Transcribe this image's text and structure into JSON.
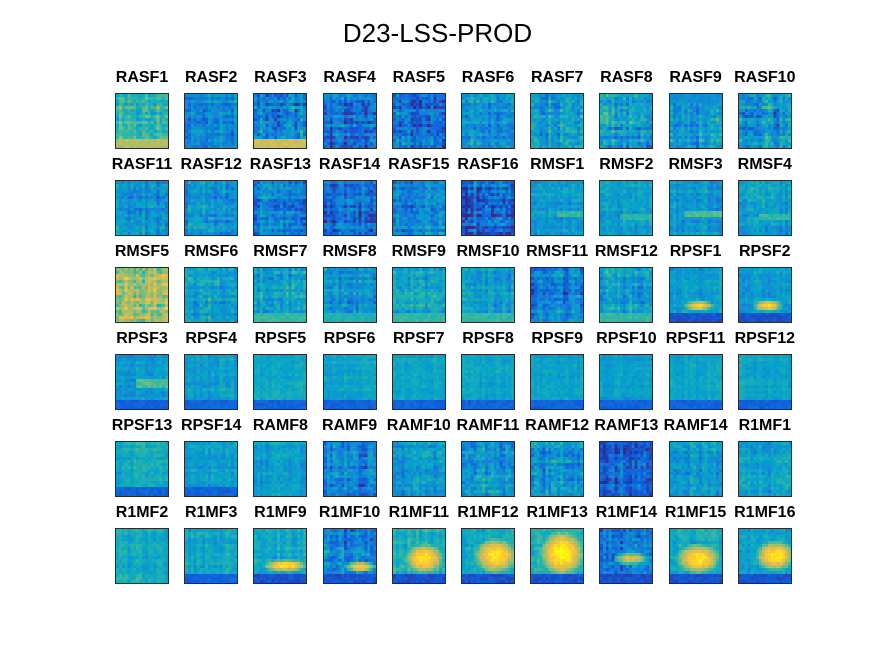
{
  "chart_data": {
    "type": "heatmap",
    "title": "D23-LSS-PROD",
    "rows": 6,
    "cols": 10,
    "colormap": "parula",
    "colormap_stops": [
      "#352a87",
      "#0f5cdd",
      "#1481d6",
      "#06a4ca",
      "#2eb7a4",
      "#87bf77",
      "#d1bb59",
      "#fec832",
      "#f9fb0e"
    ],
    "panels": [
      {
        "label": "RASF1",
        "level": 0.5,
        "speckle": 0.3,
        "blob": {
          "cx": 0.15,
          "cy": 0.7,
          "rx": 0.15,
          "ry": 0.2,
          "v": 0.45
        },
        "bottom": 0.7
      },
      {
        "label": "RASF2",
        "level": 0.28,
        "speckle": 0.3,
        "blob": {
          "cx": 0.25,
          "cy": 0.7,
          "rx": 0.2,
          "ry": 0.15,
          "v": 0.38
        }
      },
      {
        "label": "RASF3",
        "level": 0.25,
        "speckle": 0.45,
        "bottom": 0.75
      },
      {
        "label": "RASF4",
        "level": 0.2,
        "speckle": 0.4
      },
      {
        "label": "RASF5",
        "level": 0.2,
        "speckle": 0.4
      },
      {
        "label": "RASF6",
        "level": 0.3,
        "speckle": 0.35
      },
      {
        "label": "RASF7",
        "level": 0.35,
        "speckle": 0.35
      },
      {
        "label": "RASF8",
        "level": 0.35,
        "speckle": 0.4
      },
      {
        "label": "RASF9",
        "level": 0.35,
        "speckle": 0.35,
        "top": 0.3
      },
      {
        "label": "RASF10",
        "level": 0.3,
        "speckle": 0.4
      },
      {
        "label": "RASF11",
        "level": 0.3,
        "speckle": 0.3
      },
      {
        "label": "RASF12",
        "level": 0.3,
        "speckle": 0.3
      },
      {
        "label": "RASF13",
        "level": 0.25,
        "speckle": 0.35
      },
      {
        "label": "RASF14",
        "level": 0.2,
        "speckle": 0.35
      },
      {
        "label": "RASF15",
        "level": 0.28,
        "speckle": 0.35
      },
      {
        "label": "RASF16",
        "level": 0.15,
        "speckle": 0.45
      },
      {
        "label": "RMSF1",
        "level": 0.35,
        "speckle": 0.25,
        "band": {
          "y": 0.6,
          "h": 0.06,
          "x0": 0.5,
          "v": 0.5
        }
      },
      {
        "label": "RMSF2",
        "level": 0.35,
        "speckle": 0.25,
        "band": {
          "y": 0.65,
          "h": 0.06,
          "x0": 0.4,
          "v": 0.5
        }
      },
      {
        "label": "RMSF3",
        "level": 0.35,
        "speckle": 0.25,
        "band": {
          "y": 0.6,
          "h": 0.06,
          "x0": 0.3,
          "v": 0.55
        }
      },
      {
        "label": "RMSF4",
        "level": 0.35,
        "speckle": 0.25,
        "band": {
          "y": 0.65,
          "h": 0.06,
          "x0": 0.4,
          "v": 0.5
        }
      },
      {
        "label": "RMSF5",
        "level": 0.65,
        "speckle": 0.35
      },
      {
        "label": "RMSF6",
        "level": 0.35,
        "speckle": 0.3
      },
      {
        "label": "RMSF7",
        "level": 0.38,
        "speckle": 0.3,
        "bottom": 0.5
      },
      {
        "label": "RMSF8",
        "level": 0.32,
        "speckle": 0.3,
        "bottom": 0.45
      },
      {
        "label": "RMSF9",
        "level": 0.38,
        "speckle": 0.3,
        "bottom": 0.5
      },
      {
        "label": "RMSF10",
        "level": 0.35,
        "speckle": 0.25,
        "bottom": 0.5
      },
      {
        "label": "RMSF11",
        "level": 0.25,
        "speckle": 0.35
      },
      {
        "label": "RMSF12",
        "level": 0.35,
        "speckle": 0.3,
        "bottom": 0.5
      },
      {
        "label": "RPSF1",
        "level": 0.35,
        "speckle": 0.2,
        "blob": {
          "cx": 0.55,
          "cy": 0.7,
          "rx": 0.3,
          "ry": 0.1,
          "v": 0.9
        },
        "bottom": 0.1
      },
      {
        "label": "RPSF2",
        "level": 0.35,
        "speckle": 0.2,
        "blob": {
          "cx": 0.55,
          "cy": 0.7,
          "rx": 0.3,
          "ry": 0.12,
          "v": 0.9
        },
        "bottom": 0.1
      },
      {
        "label": "RPSF3",
        "level": 0.35,
        "speckle": 0.2,
        "band": {
          "y": 0.55,
          "h": 0.08,
          "x0": 0.4,
          "v": 0.55
        },
        "bottom": 0.15
      },
      {
        "label": "RPSF4",
        "level": 0.35,
        "speckle": 0.2,
        "bottom": 0.15
      },
      {
        "label": "RPSF5",
        "level": 0.4,
        "speckle": 0.15,
        "bottom": 0.15
      },
      {
        "label": "RPSF6",
        "level": 0.38,
        "speckle": 0.15,
        "bottom": 0.15
      },
      {
        "label": "RPSF7",
        "level": 0.38,
        "speckle": 0.15,
        "bottom": 0.15
      },
      {
        "label": "RPSF8",
        "level": 0.38,
        "speckle": 0.15,
        "bottom": 0.15
      },
      {
        "label": "RPSF9",
        "level": 0.38,
        "speckle": 0.15,
        "bottom": 0.15
      },
      {
        "label": "RPSF10",
        "level": 0.35,
        "speckle": 0.15,
        "bottom": 0.15
      },
      {
        "label": "RPSF11",
        "level": 0.38,
        "speckle": 0.15,
        "bottom": 0.15
      },
      {
        "label": "RPSF12",
        "level": 0.38,
        "speckle": 0.15,
        "bottom": 0.15
      },
      {
        "label": "RPSF13",
        "level": 0.4,
        "speckle": 0.2,
        "bottom": 0.15
      },
      {
        "label": "RPSF14",
        "level": 0.35,
        "speckle": 0.2,
        "bottom": 0.15
      },
      {
        "label": "RAMF8",
        "level": 0.35,
        "speckle": 0.2
      },
      {
        "label": "RAMF9",
        "level": 0.25,
        "speckle": 0.35
      },
      {
        "label": "RAMF10",
        "level": 0.32,
        "speckle": 0.3
      },
      {
        "label": "RAMF11",
        "level": 0.3,
        "speckle": 0.35
      },
      {
        "label": "RAMF12",
        "level": 0.3,
        "speckle": 0.35
      },
      {
        "label": "RAMF13",
        "level": 0.15,
        "speckle": 0.3
      },
      {
        "label": "RAMF14",
        "level": 0.35,
        "speckle": 0.25
      },
      {
        "label": "R1MF1",
        "level": 0.35,
        "speckle": 0.25
      },
      {
        "label": "R1MF2",
        "level": 0.4,
        "speckle": 0.2
      },
      {
        "label": "R1MF3",
        "level": 0.38,
        "speckle": 0.2,
        "bottom": 0.15
      },
      {
        "label": "R1MF9",
        "level": 0.4,
        "speckle": 0.2,
        "blob": {
          "cx": 0.6,
          "cy": 0.68,
          "rx": 0.45,
          "ry": 0.12,
          "v": 0.95
        },
        "bottom": 0.1
      },
      {
        "label": "R1MF10",
        "level": 0.25,
        "speckle": 0.35,
        "blob": {
          "cx": 0.7,
          "cy": 0.7,
          "rx": 0.3,
          "ry": 0.1,
          "v": 0.9
        },
        "bottom": 0.1
      },
      {
        "label": "R1MF11",
        "level": 0.45,
        "speckle": 0.2,
        "blob": {
          "cx": 0.6,
          "cy": 0.55,
          "rx": 0.4,
          "ry": 0.3,
          "v": 0.95
        },
        "bottom": 0.1
      },
      {
        "label": "R1MF12",
        "level": 0.4,
        "speckle": 0.2,
        "blob": {
          "cx": 0.65,
          "cy": 0.5,
          "rx": 0.45,
          "ry": 0.35,
          "v": 0.95
        },
        "bottom": 0.1
      },
      {
        "label": "R1MF13",
        "level": 0.45,
        "speckle": 0.2,
        "blob": {
          "cx": 0.6,
          "cy": 0.45,
          "rx": 0.45,
          "ry": 0.45,
          "v": 1.0
        },
        "bottom": 0.1
      },
      {
        "label": "R1MF14",
        "level": 0.22,
        "speckle": 0.35,
        "blob": {
          "cx": 0.6,
          "cy": 0.55,
          "rx": 0.35,
          "ry": 0.12,
          "v": 0.8
        },
        "bottom": 0.1
      },
      {
        "label": "R1MF15",
        "level": 0.4,
        "speckle": 0.2,
        "blob": {
          "cx": 0.55,
          "cy": 0.55,
          "rx": 0.45,
          "ry": 0.3,
          "v": 0.95
        },
        "bottom": 0.1
      },
      {
        "label": "R1MF16",
        "level": 0.38,
        "speckle": 0.2,
        "blob": {
          "cx": 0.7,
          "cy": 0.5,
          "rx": 0.4,
          "ry": 0.3,
          "v": 0.95
        },
        "bottom": 0.1
      }
    ]
  }
}
